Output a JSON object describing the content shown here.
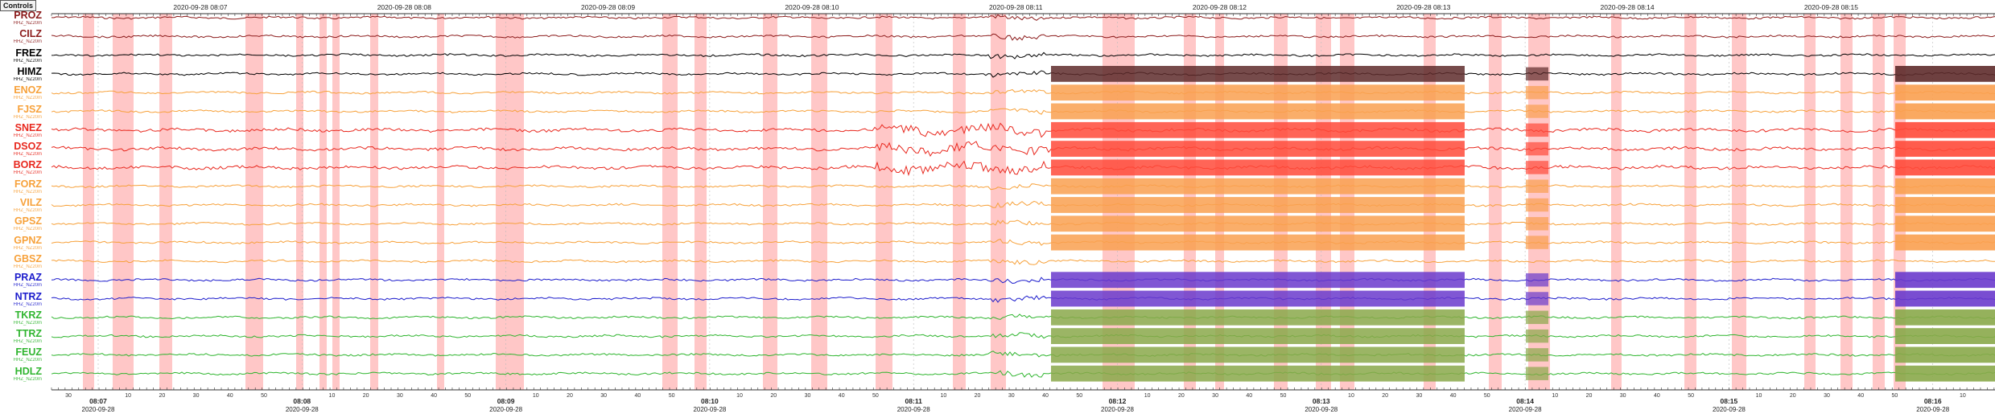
{
  "controls": {
    "label": "Controls"
  },
  "top_axis": {
    "labels": [
      "2020-09-28 08:07",
      "2020-09-28 08:08",
      "2020-09-28 08:09",
      "2020-09-28 08:10",
      "2020-09-28 08:11",
      "2020-09-28 08:12",
      "2020-09-28 08:13",
      "2020-09-28 08:14",
      "2020-09-28 08:15"
    ]
  },
  "bottom_axis": {
    "date_label": "2020-09-28",
    "minute_labels": [
      "08:07",
      "08:08",
      "08:09",
      "08:10",
      "08:11",
      "08:12",
      "08:13",
      "08:14",
      "08:15",
      "08:16"
    ],
    "second_labels": [
      "30",
      "10",
      "20",
      "30",
      "40",
      "50"
    ]
  },
  "stations": [
    {
      "code": "PROZ",
      "sub": "HHZ_NZ20m",
      "color": "#8b1a1a",
      "event": 0
    },
    {
      "code": "CILZ",
      "sub": "HHZ_NZ20m",
      "color": "#8b1a1a",
      "event": 0
    },
    {
      "code": "FREZ",
      "sub": "HHZ_NZ20m",
      "color": "#000000",
      "event": 0
    },
    {
      "code": "HIMZ",
      "sub": "HHZ_NZ20m",
      "color": "#000000",
      "event": 1
    },
    {
      "code": "ENOZ",
      "sub": "HHZ_NZ20m",
      "color": "#f7a13a",
      "event": 1
    },
    {
      "code": "FJSZ",
      "sub": "HHZ_NZ20m",
      "color": "#f7a13a",
      "event": 1
    },
    {
      "code": "SNEZ",
      "sub": "HHZ_NZ20m",
      "color": "#e8281e",
      "event": 1
    },
    {
      "code": "DSOZ",
      "sub": "HHZ_NZ20m",
      "color": "#e8281e",
      "event": 1
    },
    {
      "code": "BORZ",
      "sub": "HHZ_NZ20m",
      "color": "#e8281e",
      "event": 1
    },
    {
      "code": "FORZ",
      "sub": "HHZ_NZ20m",
      "color": "#f7a13a",
      "event": 1
    },
    {
      "code": "VILZ",
      "sub": "HHZ_NZ20m",
      "color": "#f7a13a",
      "event": 1
    },
    {
      "code": "GPSZ",
      "sub": "HHZ_NZ20m",
      "color": "#f7a13a",
      "event": 1
    },
    {
      "code": "GPNZ",
      "sub": "HHZ_NZ20m",
      "color": "#f7a13a",
      "event": 1
    },
    {
      "code": "GBSZ",
      "sub": "HHZ_NZ20m",
      "color": "#f7a13a",
      "event": 0
    },
    {
      "code": "PRAZ",
      "sub": "HHZ_NZ20m",
      "color": "#1c1ccc",
      "event": 1
    },
    {
      "code": "NTRZ",
      "sub": "HHZ_NZ20m",
      "color": "#1c1ccc",
      "event": 1
    },
    {
      "code": "TKRZ",
      "sub": "HHZ_NZ20m",
      "color": "#2fb52f",
      "event": 1
    },
    {
      "code": "TTRZ",
      "sub": "HHZ_NZ20m",
      "color": "#2fb52f",
      "event": 1
    },
    {
      "code": "FEUZ",
      "sub": "HHZ_NZ20m",
      "color": "#2fb52f",
      "event": 1
    },
    {
      "code": "HDLZ",
      "sub": "HHZ_NZ20m",
      "color": "#2fb52f",
      "event": 1
    }
  ],
  "colors": {
    "highlight_band": "#ffc7c7",
    "event_dark_red": "#5e2b2b",
    "event_orange": "#f9a050",
    "event_red": "#ff4a3a",
    "event_purple": "#6a3acc",
    "event_green": "#8aa84a",
    "axis": "#333333"
  }
}
